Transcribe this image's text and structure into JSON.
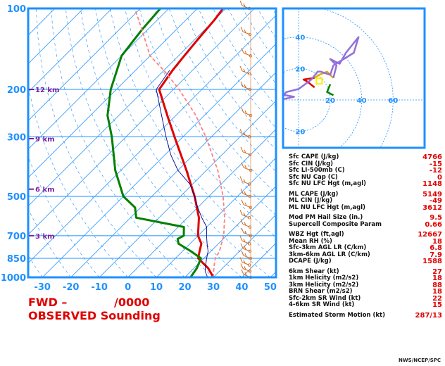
{
  "title": {
    "station": "FWD –",
    "time": "/0000",
    "subtitle": "OBSERVED Sounding"
  },
  "credit": "NWS/NCEP/SPC",
  "colors": {
    "frame": "#1e90ff",
    "temperature": "#e00000",
    "dewpoint": "#008000",
    "parcel": "#ff8080",
    "virtual": "#00008b",
    "wind": "#d2691e",
    "height": "#7b1fa2",
    "hodograph": "#9370db"
  },
  "chart_data": [
    {
      "type": "line",
      "name": "skew-t",
      "pressure_levels": [
        100,
        200,
        300,
        500,
        700,
        850,
        1000
      ],
      "pressure_labels": [
        "100",
        "200",
        "300",
        "500",
        "700",
        "850",
        "1000"
      ],
      "temp_ticks": [
        "-30",
        "-20",
        "-10",
        "0",
        "10",
        "20",
        "30",
        "40",
        "50"
      ],
      "temp_values": [
        -30,
        -20,
        -10,
        0,
        10,
        20,
        30,
        40,
        50
      ],
      "xlim": [
        -35,
        52
      ],
      "ylim": [
        1000,
        100
      ],
      "height_markers": [
        {
          "label": "12 km",
          "p": 200
        },
        {
          "label": "9 km",
          "p": 305
        },
        {
          "label": "6 km",
          "p": 470
        },
        {
          "label": "3 km",
          "p": 700
        }
      ],
      "series": [
        {
          "key": "temperature",
          "points": [
            [
              1000,
              30
            ],
            [
              925,
              25
            ],
            [
              850,
              18
            ],
            [
              800,
              16
            ],
            [
              750,
              14
            ],
            [
              700,
              10
            ],
            [
              600,
              4
            ],
            [
              500,
              -5
            ],
            [
              400,
              -17
            ],
            [
              300,
              -33
            ],
            [
              250,
              -43
            ],
            [
              200,
              -55
            ],
            [
              170,
              -57
            ],
            [
              150,
              -58
            ],
            [
              130,
              -59
            ],
            [
              110,
              -60
            ],
            [
              100,
              -61
            ]
          ]
        },
        {
          "key": "dewpoint",
          "points": [
            [
              1000,
              22
            ],
            [
              925,
              21
            ],
            [
              850,
              19
            ],
            [
              800,
              13
            ],
            [
              750,
              6
            ],
            [
              720,
              4
            ],
            [
              700,
              5
            ],
            [
              650,
              2
            ],
            [
              600,
              -18
            ],
            [
              550,
              -22
            ],
            [
              500,
              -30
            ],
            [
              400,
              -42
            ],
            [
              300,
              -55
            ],
            [
              250,
              -64
            ],
            [
              200,
              -72
            ],
            [
              150,
              -80
            ],
            [
              120,
              -82
            ],
            [
              100,
              -83
            ]
          ]
        },
        {
          "key": "parcel",
          "points": [
            [
              1000,
              30
            ],
            [
              950,
              28
            ],
            [
              900,
              26
            ],
            [
              850,
              24
            ],
            [
              800,
              23
            ],
            [
              700,
              19
            ],
            [
              600,
              13
            ],
            [
              500,
              5
            ],
            [
              400,
              -6
            ],
            [
              300,
              -22
            ],
            [
              250,
              -33
            ],
            [
              200,
              -48
            ],
            [
              170,
              -60
            ],
            [
              150,
              -70
            ],
            [
              120,
              -82
            ],
            [
              100,
              -92
            ]
          ]
        },
        {
          "key": "virtual",
          "points": [
            [
              1000,
              28
            ],
            [
              950,
              25
            ],
            [
              900,
              23
            ],
            [
              850,
              21
            ],
            [
              800,
              19
            ],
            [
              750,
              16
            ],
            [
              700,
              13
            ],
            [
              650,
              10
            ],
            [
              600,
              5
            ],
            [
              550,
              0
            ],
            [
              500,
              -5
            ],
            [
              450,
              -11
            ],
            [
              400,
              -20
            ],
            [
              350,
              -28
            ],
            [
              300,
              -36
            ],
            [
              250,
              -45
            ],
            [
              200,
              -56
            ],
            [
              170,
              -58
            ]
          ]
        }
      ],
      "wind_pressures": [
        1000,
        950,
        900,
        850,
        800,
        750,
        700,
        650,
        600,
        550,
        500,
        450,
        400,
        350,
        300,
        250,
        200,
        175,
        150,
        125,
        100
      ]
    },
    {
      "type": "line",
      "name": "hodograph",
      "ring_labels": [
        "20",
        "40",
        "60"
      ],
      "ring_values": [
        20,
        40,
        60
      ],
      "axis_label_values": [
        20,
        40,
        60
      ],
      "axis_range": [
        -10,
        80
      ],
      "storm_motion": [
        13,
        12
      ],
      "series": [
        {
          "key": "low",
          "color": "#008000",
          "points": [
            [
              20,
              10
            ],
            [
              18,
              5
            ],
            [
              22,
              3
            ]
          ]
        },
        {
          "key": "mid",
          "color": "#e00000",
          "points": [
            [
              10,
              8
            ],
            [
              5,
              12
            ],
            [
              3,
              13
            ],
            [
              10,
              14
            ]
          ]
        },
        {
          "key": "mid2",
          "color": "#e0b000",
          "points": [
            [
              10,
              14
            ],
            [
              13,
              16
            ],
            [
              18,
              18
            ],
            [
              22,
              14
            ]
          ]
        },
        {
          "key": "upper",
          "color": "#9370db",
          "points": [
            [
              22,
              14
            ],
            [
              23,
              18
            ],
            [
              24,
              22
            ],
            [
              20,
              26
            ],
            [
              26,
              23
            ],
            [
              30,
              30
            ],
            [
              38,
              40
            ],
            [
              35,
              30
            ],
            [
              22,
              22
            ],
            [
              20,
              16
            ],
            [
              14,
              18
            ],
            [
              12,
              18
            ],
            [
              8,
              13
            ],
            [
              0,
              7
            ],
            [
              -8,
              5
            ],
            [
              -12,
              0
            ],
            [
              -3,
              2
            ],
            [
              -14,
              4
            ],
            [
              -20,
              6
            ],
            [
              -28,
              6
            ]
          ]
        }
      ]
    }
  ],
  "params": [
    {
      "label": "Sfc CAPE (J/kg)",
      "value": "4766"
    },
    {
      "label": "Sfc CIN (J/kg)",
      "value": "-15"
    },
    {
      "label": "Sfc LI-500mb (C)",
      "value": "-12"
    },
    {
      "label": "Sfc NU Cap (C)",
      "value": "0"
    },
    {
      "label": "Sfc NU LFC Hgt (m,agl)",
      "value": "1148"
    },
    {
      "gap": true
    },
    {
      "label": "ML CAPE (J/kg)",
      "value": "5149"
    },
    {
      "label": "ML CIN (J/kg)",
      "value": "-49"
    },
    {
      "label": "ML NU LFC Hgt (m,agl)",
      "value": "3612"
    },
    {
      "gap": true
    },
    {
      "label": "Mod PM Hail Size (in.)",
      "value": "9.5"
    },
    {
      "label": "Supercell Composite Param",
      "value": "0.66"
    },
    {
      "gap": true
    },
    {
      "label": "WBZ Hgt (ft,agl)",
      "value": "12667"
    },
    {
      "label": "Mean RH (%)",
      "value": "18"
    },
    {
      "label": "Sfc-3km AGL LR (C/km)",
      "value": "6.8"
    },
    {
      "label": "3km-6km AGL LR (C/km)",
      "value": "7.9"
    },
    {
      "label": "DCAPE (J/kg)",
      "value": "1588"
    },
    {
      "gap": true
    },
    {
      "label": "6km Shear (kt)",
      "value": "27"
    },
    {
      "label": "1km Helicity (m2/s2)",
      "value": "18"
    },
    {
      "label": "3km Helicity (m2/s2)",
      "value": "88"
    },
    {
      "label": "BRN Shear (m2/s2)",
      "value": "18"
    },
    {
      "label": "Sfc-2km SR Wind (kt)",
      "value": "22"
    },
    {
      "label": "4-6km SR Wind (kt)",
      "value": "15"
    },
    {
      "gap": true
    },
    {
      "label": "Estimated Storm Motion (kt)",
      "value": "287/13"
    }
  ]
}
